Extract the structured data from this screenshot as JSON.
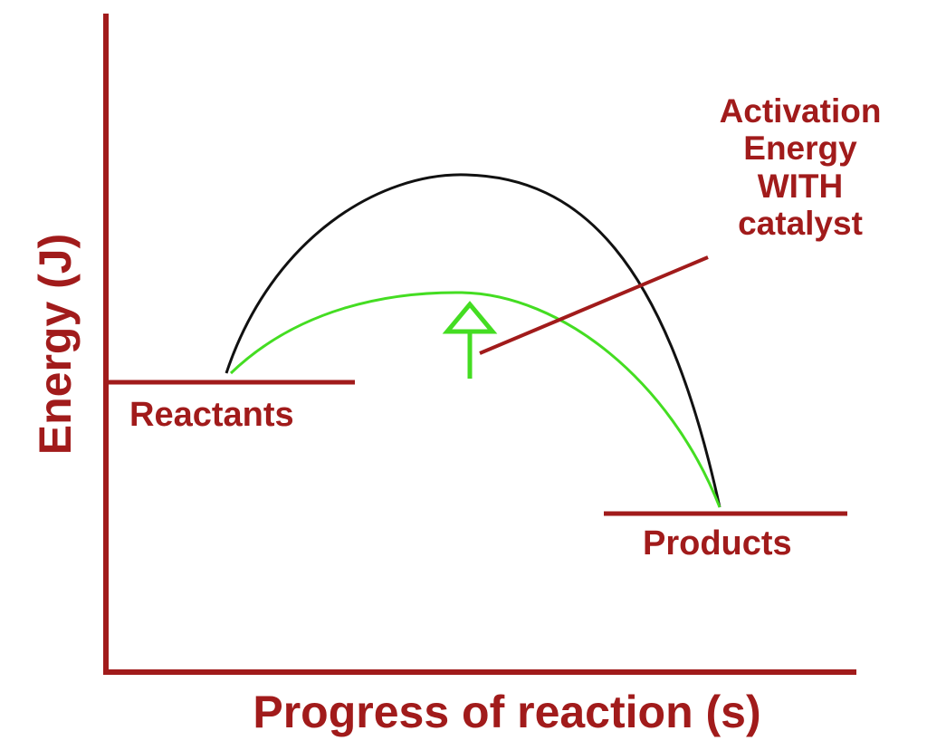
{
  "axes": {
    "y_label": "Energy (J)",
    "x_label": "Progress of reaction (s)"
  },
  "levels": {
    "reactants": "Reactants",
    "products": "Products"
  },
  "annotation": {
    "lines": [
      "Activation",
      "Energy",
      "WITH",
      "catalyst"
    ]
  }
}
